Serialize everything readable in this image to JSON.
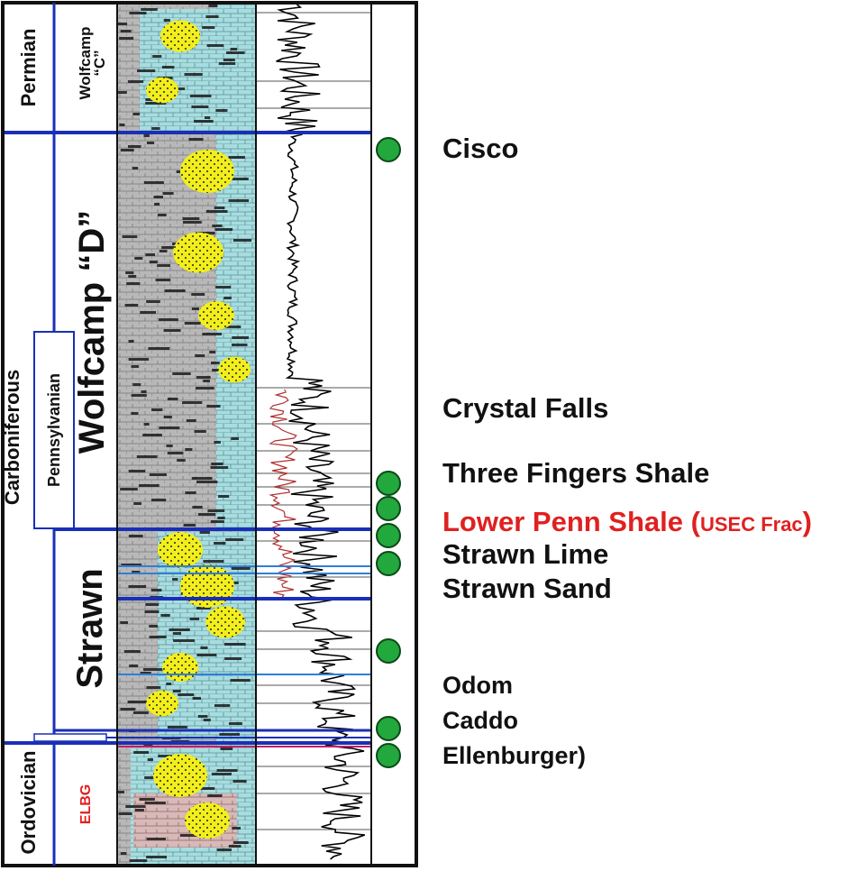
{
  "columns": {
    "systems": [
      "Permian",
      "Carboniferous",
      "Ordovician"
    ],
    "sub_system": "Pennsylvanian",
    "units": [
      "Wolfcamp",
      "“C”",
      "Wolfcamp “D”",
      "Strawn",
      "ELBG"
    ]
  },
  "formations": [
    {
      "name": "Cisco",
      "marker": true
    },
    {
      "name": "Crystal Falls",
      "marker": false
    },
    {
      "name": "Three Fingers Shale",
      "marker": true
    },
    {
      "name": "Lower Penn Shale (",
      "note": "USEC Frac",
      "tail": ")",
      "marker": true
    },
    {
      "name": "Strawn Lime",
      "marker": true
    },
    {
      "name": "Strawn Sand",
      "marker": true
    },
    {
      "name": "Odom",
      "marker": true
    },
    {
      "name": "Caddo",
      "marker": true
    },
    {
      "name": "Ellenburger)",
      "marker": true
    }
  ],
  "colors": {
    "frame": "#111111",
    "boundary": "#1a2fb8",
    "marker_fill": "#22a83c",
    "marker_stroke": "#0c4a18",
    "highlight_text": "#e02020",
    "elbg_text": "#e02020",
    "sand": "#f2ee1c",
    "lime": "#a8dde0",
    "shale": "#b8b8b8",
    "log_red": "#b03030"
  }
}
